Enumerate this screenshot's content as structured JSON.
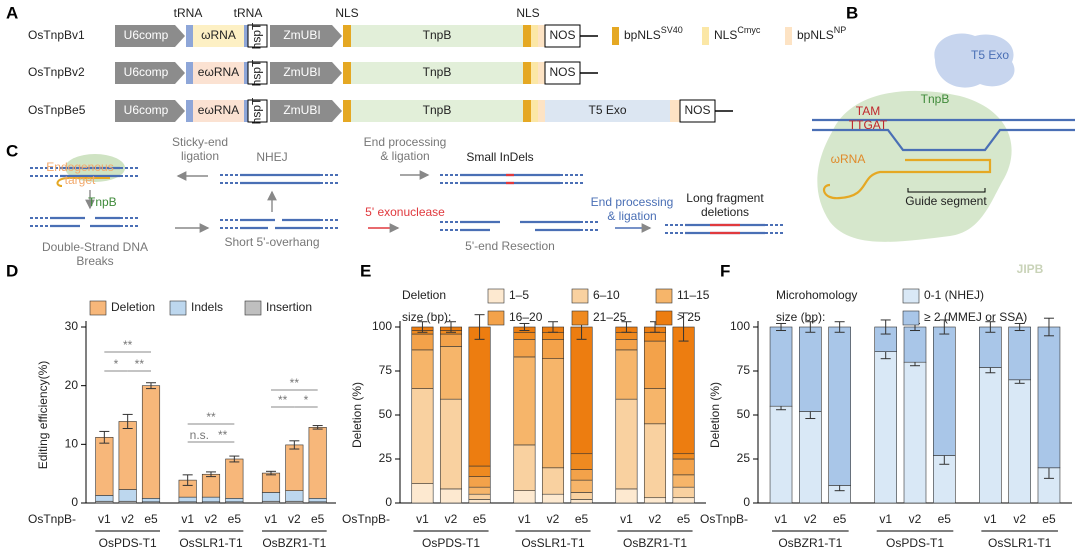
{
  "panel_a": {
    "letter": "A",
    "constructs": [
      {
        "name": "OsTnpBv1",
        "parts": [
          "U6comp",
          "ωRNA",
          "hspT",
          "ZmUBI",
          "TnpB",
          "NOS"
        ]
      },
      {
        "name": "OsTnpBv2",
        "parts": [
          "U6comp",
          "eωRNA",
          "hspT",
          "ZmUBI",
          "TnpB",
          "NOS"
        ]
      },
      {
        "name": "OsTnpBe5",
        "parts": [
          "U6comp",
          "eωRNA",
          "hspT",
          "ZmUBI",
          "TnpB",
          "T5 Exo",
          "NOS"
        ]
      }
    ],
    "top_labels": [
      "tRNA",
      "tRNA",
      "NLS",
      "NLS"
    ],
    "legend": [
      {
        "text": "bpNLS",
        "sup": "SV40",
        "color": "#e5a823"
      },
      {
        "text": "NLS",
        "sup": "Cmyc",
        "color": "#fbe7a6"
      },
      {
        "text": "bpNLS",
        "sup": "NP",
        "color": "#fde3c4"
      }
    ]
  },
  "panel_b": {
    "letter": "B",
    "exo": "T5 Exo",
    "tnpb": "TnpB",
    "tam": "TAM",
    "tam_seq": "TTGAT",
    "rna": "ωRNA",
    "guide": "Guide segment"
  },
  "panel_c": {
    "letter": "C",
    "target": [
      "Endogenous",
      "target"
    ],
    "tnpb": "TnpB",
    "dsb": [
      "Double-Strand DNA",
      "Breaks"
    ],
    "sticky": [
      "Sticky-end",
      "ligation"
    ],
    "nhej": "NHEJ",
    "processing_gray": [
      "End processing",
      "& ligation"
    ],
    "small": "Small InDels",
    "overhang": "Short 5'-overhang",
    "exonuclease": "5' exonuclease",
    "resection": "5'-end Resection",
    "processing_blue": [
      "End processing",
      "& ligation"
    ],
    "long": [
      "Long fragment",
      "deletions"
    ]
  },
  "chart_data": [
    {
      "type": "stacked_bar",
      "panel": "D",
      "y_label": "Editing efficiency(%)",
      "x_prefix": "OsTnpB-",
      "categories": [
        "v1",
        "v2",
        "e5",
        "v1",
        "v2",
        "e5",
        "v1",
        "v2",
        "e5"
      ],
      "groups": [
        "OsPDS-T1",
        "OsSLR1-T1",
        "OsBZR1-T1"
      ],
      "series": [
        {
          "name": "Deletion",
          "color": "#f7b77a",
          "values": [
            9.9,
            11.6,
            19.2,
            2.9,
            3.9,
            6.7,
            3.3,
            7.8,
            12.1
          ],
          "errors": [
            1.0,
            1.2,
            0.5,
            0.9,
            0.4,
            0.5,
            0.3,
            0.7,
            0.3
          ]
        },
        {
          "name": "Indels",
          "color": "#bdd7ee",
          "values": [
            1.0,
            2.0,
            0.6,
            0.8,
            0.8,
            0.6,
            1.5,
            1.8,
            0.6
          ]
        },
        {
          "name": "Insertion",
          "color": "#bfbfbf",
          "values": [
            0.3,
            0.3,
            0.2,
            0.2,
            0.2,
            0.2,
            0.3,
            0.3,
            0.2
          ]
        }
      ],
      "annotations": [
        "**",
        "*",
        "**",
        "**",
        "n.s.",
        "**",
        "**",
        "**",
        "*"
      ],
      "ylim": [
        0,
        30
      ],
      "yticks": [
        0,
        10,
        20,
        30
      ]
    },
    {
      "type": "stacked_bar",
      "panel": "E",
      "y_label": "Deletion (%)",
      "x_prefix": "OsTnpB-",
      "legend_title": [
        "Deletion",
        "size (bp):"
      ],
      "categories": [
        "v1",
        "v2",
        "e5",
        "v1",
        "v2",
        "e5",
        "v1",
        "v2",
        "e5"
      ],
      "groups": [
        "OsPDS-T1",
        "OsSLR1-T1",
        "OsBZR1-T1"
      ],
      "series": [
        {
          "name": "1–5",
          "color": "#fde9d0",
          "values": [
            11,
            8,
            2,
            7,
            5,
            2,
            8,
            3,
            3
          ]
        },
        {
          "name": "6–10",
          "color": "#f9d1a0",
          "values": [
            54,
            51,
            3,
            26,
            15,
            4,
            51,
            42,
            6
          ]
        },
        {
          "name": "11–15",
          "color": "#f6b56a",
          "values": [
            22,
            30,
            4,
            50,
            62,
            7,
            28,
            20,
            7
          ]
        },
        {
          "name": "16–20",
          "color": "#f3a24a",
          "values": [
            9,
            7,
            6,
            10,
            11,
            6,
            6,
            27,
            9
          ]
        },
        {
          "name": "21–25",
          "color": "#ef8a20",
          "values": [
            2,
            2,
            6,
            4,
            4,
            9,
            4,
            5,
            3
          ]
        },
        {
          "name": "> 25",
          "color": "#ed7d10",
          "values": [
            2,
            2,
            79,
            3,
            3,
            72,
            3,
            3,
            72
          ],
          "errors": [
            3,
            3,
            7,
            2,
            3,
            7,
            3,
            3,
            8
          ]
        }
      ],
      "ylim": [
        0,
        100
      ],
      "yticks": [
        0,
        25,
        50,
        75,
        100
      ]
    },
    {
      "type": "stacked_bar",
      "panel": "F",
      "y_label": "Deletion (%)",
      "x_prefix": "OsTnpB-",
      "legend_title": [
        "Microhomology",
        "size (bp):"
      ],
      "watermark": "JIPB",
      "categories": [
        "v1",
        "v2",
        "e5",
        "v1",
        "v2",
        "e5",
        "v1",
        "v2",
        "e5"
      ],
      "groups": [
        "OsBZR1-T1",
        "OsPDS-T1",
        "OsSLR1-T1"
      ],
      "series": [
        {
          "name": "0-1 (NHEJ)",
          "color": "#d9e8f6",
          "values": [
            55,
            52,
            10,
            86,
            80,
            27,
            77,
            70,
            20
          ],
          "errors": [
            2,
            4,
            3,
            4,
            2,
            5,
            3,
            2,
            6
          ]
        },
        {
          "name": "≥ 2 (MMEJ or SSA)",
          "color": "#a9c6e8",
          "values": [
            45,
            48,
            90,
            14,
            20,
            73,
            23,
            30,
            80
          ],
          "errors": [
            2,
            3,
            3,
            4,
            2,
            4,
            3,
            2,
            5
          ]
        }
      ],
      "ylim": [
        0,
        100
      ],
      "yticks": [
        0,
        25,
        50,
        75,
        100
      ]
    }
  ]
}
